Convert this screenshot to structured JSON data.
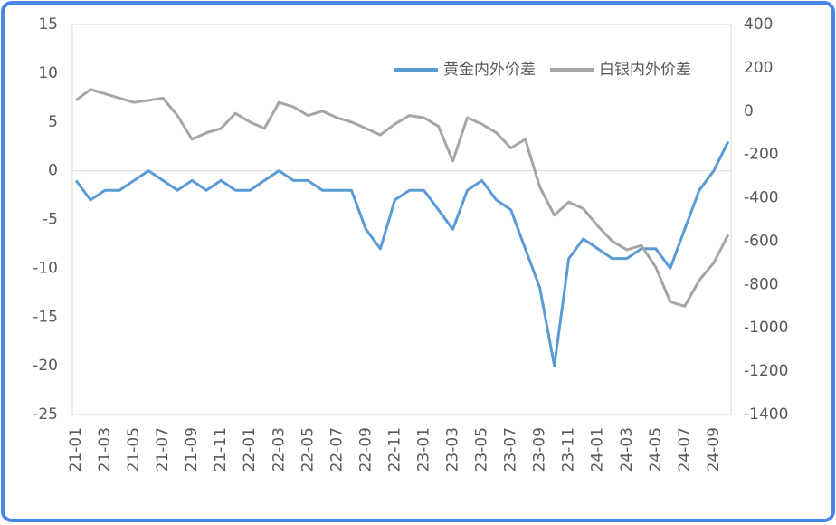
{
  "chart_data": {
    "type": "line",
    "categories": [
      "21-01",
      null,
      "21-03",
      null,
      "21-05",
      null,
      "21-07",
      null,
      "21-09",
      null,
      "21-11",
      null,
      "22-01",
      null,
      "22-03",
      null,
      "22-05",
      null,
      "22-07",
      null,
      "22-09",
      null,
      "22-11",
      null,
      "23-01",
      null,
      "23-03",
      null,
      "23-05",
      null,
      "23-07",
      null,
      "23-09",
      null,
      "23-11",
      null,
      "24-01",
      null,
      "24-03",
      null,
      "24-05",
      null,
      "24-07",
      null,
      "24-09",
      null
    ],
    "series": [
      {
        "name": "黄金内外价差",
        "color": "#5b9bd5",
        "axis": "y",
        "values": [
          -1,
          -3,
          -2,
          -2,
          -1,
          0,
          -1,
          -2,
          -1,
          -2,
          -1,
          -2,
          -2,
          -1,
          0,
          -1,
          -1,
          -2,
          -2,
          -2,
          -6,
          -8,
          -3,
          -2,
          -2,
          -4,
          -6,
          -2,
          -1,
          -3,
          -4,
          -8,
          -12,
          -20,
          -9,
          -7,
          -8,
          -9,
          -9,
          -8,
          -8,
          -10,
          -6,
          -2,
          0,
          3
        ]
      },
      {
        "name": "白银内外价差",
        "color": "#a5a5a5",
        "axis": "y2",
        "values": [
          50,
          100,
          80,
          60,
          40,
          50,
          60,
          -20,
          -130,
          -100,
          -80,
          -10,
          -50,
          -80,
          40,
          20,
          -20,
          0,
          -30,
          -50,
          -80,
          -110,
          -60,
          -20,
          -30,
          -70,
          -230,
          -30,
          -60,
          -100,
          -170,
          -130,
          -350,
          -480,
          -420,
          -450,
          -530,
          -600,
          -640,
          -620,
          -720,
          -880,
          -900,
          -780,
          -700,
          -570
        ]
      }
    ],
    "ylim": [
      -25,
      15
    ],
    "yticks": [
      15,
      10,
      5,
      0,
      -5,
      -10,
      -15,
      -20,
      -25
    ],
    "y2lim": [
      -1400,
      400
    ],
    "y2ticks": [
      400,
      200,
      0,
      -200,
      -400,
      -600,
      -800,
      -1000,
      -1200,
      -1400
    ],
    "legend": "top-right"
  }
}
